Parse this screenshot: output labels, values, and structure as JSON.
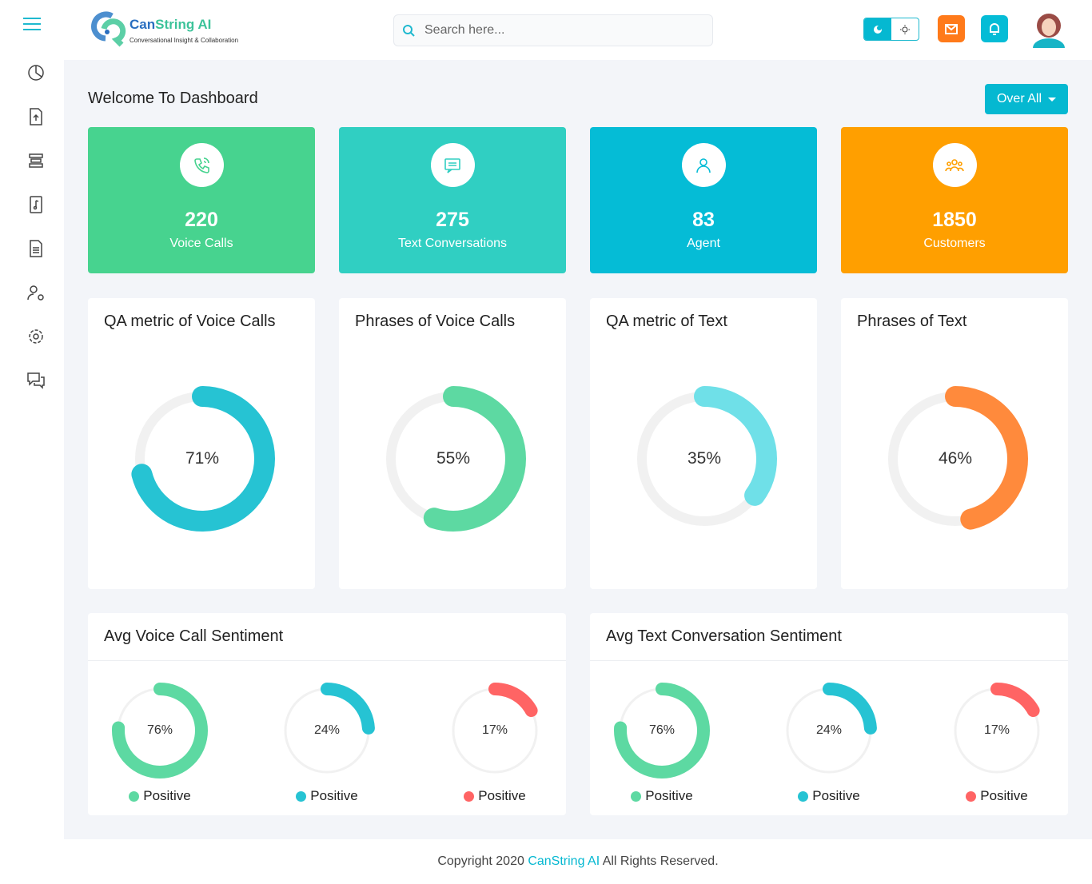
{
  "header": {
    "brand_a": "Can",
    "brand_b": "String AI",
    "tagline": "Conversational Insight & Collaboration",
    "search_placeholder": "Search here..."
  },
  "page": {
    "title": "Welcome To Dashboard",
    "filter": "Over All"
  },
  "stats": [
    {
      "value": "220",
      "label": "Voice Calls",
      "color": "#47d38f",
      "icon": "phone-icon"
    },
    {
      "value": "275",
      "label": "Text Conversations",
      "color": "#30cfc2",
      "icon": "chat-icon"
    },
    {
      "value": "83",
      "label": "Agent",
      "color": "#05bcd6",
      "icon": "user-icon"
    },
    {
      "value": "1850",
      "label": "Customers",
      "color": "#ff9f00",
      "icon": "group-icon"
    }
  ],
  "gauges": [
    {
      "title": "QA metric of Voice Calls",
      "percent": 71,
      "label": "71%",
      "color": "#26c3d3"
    },
    {
      "title": "Phrases of Voice Calls",
      "percent": 55,
      "label": "55%",
      "color": "#5dd9a2"
    },
    {
      "title": "QA metric of Text",
      "percent": 35,
      "label": "35%",
      "color": "#6fe0e8"
    },
    {
      "title": "Phrases of Text",
      "percent": 46,
      "label": "46%",
      "color": "#ff8a3c"
    }
  ],
  "sentiment": [
    {
      "title": "Avg Voice Call Sentiment",
      "items": [
        {
          "percent": 76,
          "label": "76%",
          "name": "Positive",
          "color": "#5dd9a2"
        },
        {
          "percent": 24,
          "label": "24%",
          "name": "Positive",
          "color": "#26c3d3"
        },
        {
          "percent": 17,
          "label": "17%",
          "name": "Positive",
          "color": "#ff6464"
        }
      ]
    },
    {
      "title": "Avg Text Conversation Sentiment",
      "items": [
        {
          "percent": 76,
          "label": "76%",
          "name": "Positive",
          "color": "#5dd9a2"
        },
        {
          "percent": 24,
          "label": "24%",
          "name": "Positive",
          "color": "#26c3d3"
        },
        {
          "percent": 17,
          "label": "17%",
          "name": "Positive",
          "color": "#ff6464"
        }
      ]
    }
  ],
  "footer": {
    "pre": "Copyright 2020 ",
    "brand": "CanString AI",
    "post": " All Rights Reserved."
  }
}
